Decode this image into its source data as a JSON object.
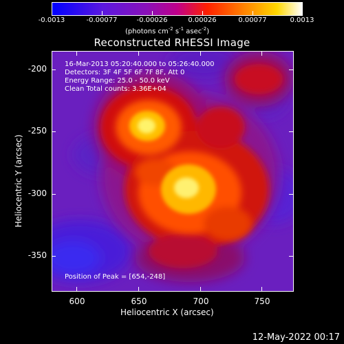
{
  "colorbar": {
    "ticks": [
      "-0.0013",
      "-0.00077",
      "-0.00026",
      "0.00026",
      "0.00077",
      "0.0013"
    ],
    "unit_prefix": "(photons cm",
    "unit_exp1": "-2",
    "unit_mid1": " s",
    "unit_exp2": "-1",
    "unit_mid2": " asec",
    "unit_exp3": "-2",
    "unit_suffix": ")"
  },
  "title": "Reconstructed RHESSI Image",
  "info": {
    "line1": "16-Mar-2013 05:20:40.000 to 05:26:40.000",
    "line2": "Detectors: 3F 4F 5F 6F 7F 8F, Att 0",
    "line3": "Energy Range: 25.0 - 50.0 keV",
    "line4": "Clean    Total counts: 3.36E+04"
  },
  "peak": "Position of Peak = [654,-248]",
  "axes": {
    "x_label": "Heliocentric X (arcsec)",
    "y_label": "Heliocentric Y (arcsec)",
    "x_ticks": [
      "600",
      "650",
      "700",
      "750"
    ],
    "y_ticks": [
      "-200",
      "-250",
      "-300",
      "-350"
    ]
  },
  "timestamp": "12-May-2022 00:17",
  "colors": {
    "colormap": [
      "#0000ff",
      "#7a00d6",
      "#c4009a",
      "#ff2a00",
      "#ff8c00",
      "#ffe000",
      "#ffffff"
    ],
    "background_level": "#6a1fbf"
  }
}
